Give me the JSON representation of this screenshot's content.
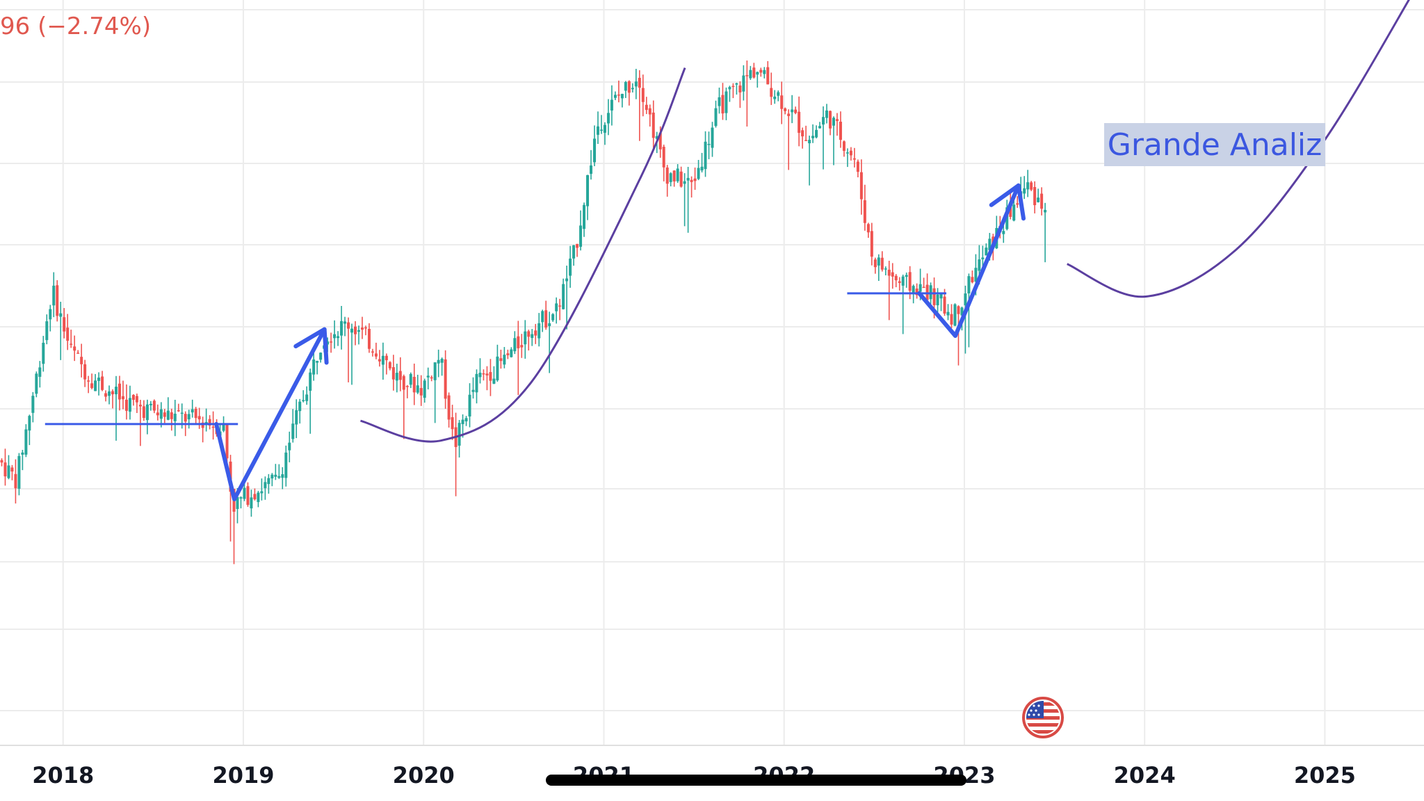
{
  "header": {
    "change_text": "96 (−2.74%)"
  },
  "annotation": {
    "text": "Grande Analiz",
    "text_color": "#3b57e0",
    "box_color": "#c9d2e6"
  },
  "colors": {
    "up_candle": "#26a69a",
    "down_candle": "#ef5350",
    "drawing_blue": "#3a5be8",
    "curve_purple": "#5b3fa0",
    "grid": "#ececec"
  },
  "chart_data": {
    "type": "candlestick",
    "title": "",
    "xlabel": "",
    "ylabel": "",
    "x_ticks": [
      "2018",
      "2019",
      "2020",
      "2021",
      "2022",
      "2023",
      "2024",
      "2025"
    ],
    "x_range": [
      2017.65,
      2025.55
    ],
    "y_range_relative": [
      0,
      100
    ],
    "grid": true,
    "note_values_relative_price": true,
    "price_path": [
      [
        2017.65,
        36
      ],
      [
        2017.75,
        33
      ],
      [
        2017.85,
        47
      ],
      [
        2017.95,
        62
      ],
      [
        2018.05,
        53
      ],
      [
        2018.15,
        49
      ],
      [
        2018.35,
        45
      ],
      [
        2018.55,
        43
      ],
      [
        2018.8,
        42
      ],
      [
        2018.9,
        41
      ],
      [
        2018.95,
        29
      ],
      [
        2019.05,
        31
      ],
      [
        2019.2,
        33
      ],
      [
        2019.3,
        42
      ],
      [
        2019.45,
        55
      ],
      [
        2019.6,
        57
      ],
      [
        2019.75,
        53
      ],
      [
        2019.85,
        49
      ],
      [
        2020.0,
        47
      ],
      [
        2020.1,
        52
      ],
      [
        2020.18,
        38
      ],
      [
        2020.3,
        48
      ],
      [
        2020.45,
        51
      ],
      [
        2020.6,
        56
      ],
      [
        2020.75,
        59
      ],
      [
        2020.85,
        68
      ],
      [
        2020.97,
        87
      ],
      [
        2021.07,
        91
      ],
      [
        2021.2,
        95
      ],
      [
        2021.35,
        80
      ],
      [
        2021.5,
        78
      ],
      [
        2021.65,
        90
      ],
      [
        2021.85,
        96
      ],
      [
        2022.0,
        91
      ],
      [
        2022.15,
        85
      ],
      [
        2022.25,
        89
      ],
      [
        2022.4,
        82
      ],
      [
        2022.5,
        67
      ],
      [
        2022.65,
        63
      ],
      [
        2022.8,
        62
      ],
      [
        2022.95,
        58
      ],
      [
        2023.05,
        64
      ],
      [
        2023.2,
        71
      ],
      [
        2023.35,
        78
      ],
      [
        2023.45,
        75
      ]
    ],
    "drawings": {
      "support_2018": {
        "x": [
          2017.9,
          2018.97
        ],
        "y": 41.5
      },
      "support_2022": {
        "x": [
          2022.35,
          2022.9
        ],
        "y": 61.5
      },
      "arrow_2019": [
        [
          2018.85,
          41.5
        ],
        [
          2018.95,
          30
        ],
        [
          2019.45,
          56
        ]
      ],
      "arrow_2023": [
        [
          2022.75,
          61.5
        ],
        [
          2022.95,
          55
        ],
        [
          2023.3,
          78
        ]
      ],
      "curve_2020": [
        [
          2019.65,
          42
        ],
        [
          2020.1,
          39
        ],
        [
          2020.6,
          48
        ],
        [
          2021.2,
          79
        ],
        [
          2021.45,
          96
        ]
      ],
      "curve_projection": [
        [
          2023.57,
          66
        ],
        [
          2024.0,
          61
        ],
        [
          2024.5,
          68
        ],
        [
          2025.0,
          85
        ],
        [
          2025.5,
          108
        ]
      ]
    }
  }
}
